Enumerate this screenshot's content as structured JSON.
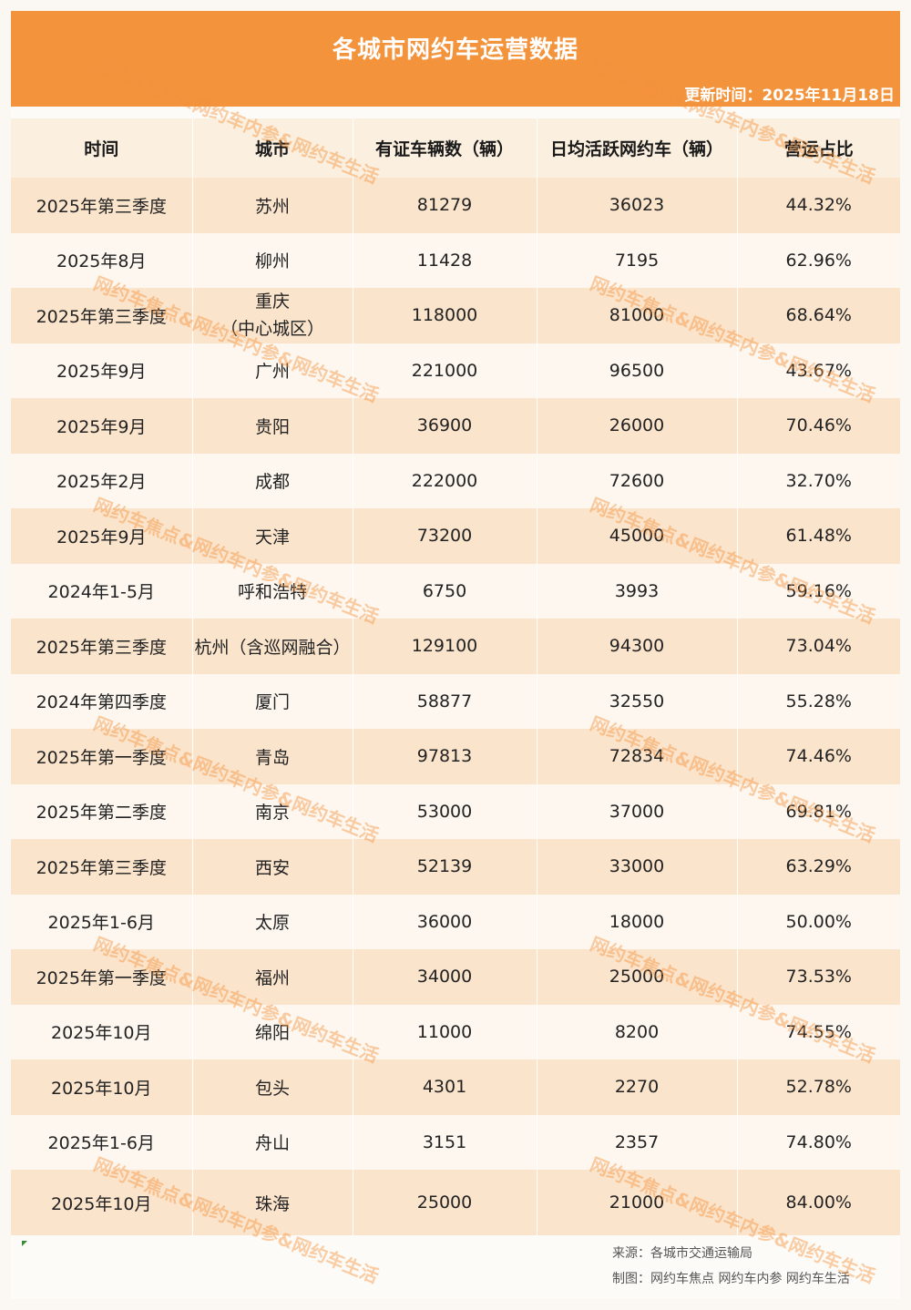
{
  "title": "各城市网约车运营数据",
  "update_time": "更新时间：2025年11月18日",
  "columns": [
    "时间",
    "城市",
    "有证车辆数（辆）",
    "日均活跃网约车（辆）",
    "营运占比"
  ],
  "rows": [
    {
      "time": "2025年第三季度",
      "city": "苏州",
      "city_sub": "",
      "licensed": "81279",
      "active": "36023",
      "ratio": "44.32%"
    },
    {
      "time": "2025年8月",
      "city": "柳州",
      "city_sub": "",
      "licensed": "11428",
      "active": "7195",
      "ratio": "62.96%"
    },
    {
      "time": "2025年第三季度",
      "city": "重庆",
      "city_sub": "（中心城区）",
      "licensed": "118000",
      "active": "81000",
      "ratio": "68.64%"
    },
    {
      "time": "2025年9月",
      "city": "广州",
      "city_sub": "",
      "licensed": "221000",
      "active": "96500",
      "ratio": "43.67%"
    },
    {
      "time": "2025年9月",
      "city": "贵阳",
      "city_sub": "",
      "licensed": "36900",
      "active": "26000",
      "ratio": "70.46%"
    },
    {
      "time": "2025年2月",
      "city": "成都",
      "city_sub": "",
      "licensed": "222000",
      "active": "72600",
      "ratio": "32.70%"
    },
    {
      "time": "2025年9月",
      "city": "天津",
      "city_sub": "",
      "licensed": "73200",
      "active": "45000",
      "ratio": "61.48%"
    },
    {
      "time": "2024年1-5月",
      "city": "呼和浩特",
      "city_sub": "",
      "licensed": "6750",
      "active": "3993",
      "ratio": "59.16%"
    },
    {
      "time": "2025年第三季度",
      "city": "杭州（含巡网融合）",
      "city_sub": "",
      "licensed": "129100",
      "active": "94300",
      "ratio": "73.04%"
    },
    {
      "time": "2024年第四季度",
      "city": "厦门",
      "city_sub": "",
      "licensed": "58877",
      "active": "32550",
      "ratio": "55.28%"
    },
    {
      "time": "2025年第一季度",
      "city": "青岛",
      "city_sub": "",
      "licensed": "97813",
      "active": "72834",
      "ratio": "74.46%"
    },
    {
      "time": "2025年第二季度",
      "city": "南京",
      "city_sub": "",
      "licensed": "53000",
      "active": "37000",
      "ratio": "69.81%"
    },
    {
      "time": "2025年第三季度",
      "city": "西安",
      "city_sub": "",
      "licensed": "52139",
      "active": "33000",
      "ratio": "63.29%"
    },
    {
      "time": "2025年1-6月",
      "city": "太原",
      "city_sub": "",
      "licensed": "36000",
      "active": "18000",
      "ratio": "50.00%"
    },
    {
      "time": "2025年第一季度",
      "city": "福州",
      "city_sub": "",
      "licensed": "34000",
      "active": "25000",
      "ratio": "73.53%"
    },
    {
      "time": "2025年10月",
      "city": "绵阳",
      "city_sub": "",
      "licensed": "11000",
      "active": "8200",
      "ratio": "74.55%"
    },
    {
      "time": "2025年10月",
      "city": "包头",
      "city_sub": "",
      "licensed": "4301",
      "active": "2270",
      "ratio": "52.78%"
    },
    {
      "time": "2025年1-6月",
      "city": "舟山",
      "city_sub": "",
      "licensed": "3151",
      "active": "2357",
      "ratio": "74.80%"
    },
    {
      "time": "2025年10月",
      "city": "珠海",
      "city_sub": "",
      "licensed": "25000",
      "active": "21000",
      "ratio": "84.00%"
    }
  ],
  "source": "来源：各城市交通运输局",
  "maker": "制图：网约车焦点 网约车内参 网约车生活",
  "watermark": "网约车焦点&网约车内参&网约车生活",
  "colors": {
    "header": "#f3933c",
    "row_odd": "#fbe4cc",
    "row_even": "#fdf7f0"
  }
}
